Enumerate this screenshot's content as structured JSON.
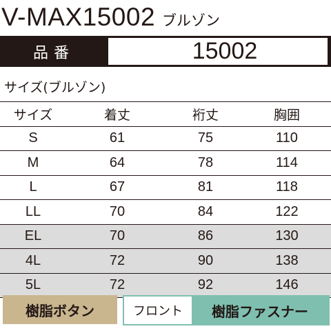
{
  "header": {
    "model": "V-MAX15002",
    "kind": "ブルゾン"
  },
  "part_number": {
    "label": "品番",
    "value": "15002"
  },
  "size_section": {
    "title": "サイズ(ブルゾン)",
    "columns": [
      "サイズ",
      "着丈",
      "裄丈",
      "胸囲"
    ],
    "rows": [
      {
        "size": "S",
        "length": "61",
        "sleeve": "75",
        "chest": "110",
        "shaded": false
      },
      {
        "size": "M",
        "length": "64",
        "sleeve": "78",
        "chest": "114",
        "shaded": false
      },
      {
        "size": "L",
        "length": "67",
        "sleeve": "81",
        "chest": "118",
        "shaded": false
      },
      {
        "size": "LL",
        "length": "70",
        "sleeve": "84",
        "chest": "122",
        "shaded": false
      },
      {
        "size": "EL",
        "length": "70",
        "sleeve": "86",
        "chest": "130",
        "shaded": true
      },
      {
        "size": "4L",
        "length": "72",
        "sleeve": "90",
        "chest": "138",
        "shaded": true
      },
      {
        "size": "5L",
        "length": "72",
        "sleeve": "92",
        "chest": "146",
        "shaded": true
      }
    ]
  },
  "footer": {
    "button_tag": "樹脂ボタン",
    "front_label": "フロント",
    "front_value": "樹脂ファスナー"
  },
  "colors": {
    "dark": "#231815",
    "shade": "#dcdcdc",
    "button_tag_bg": "#c9b68f",
    "front_accent": "#7fbfb0"
  }
}
